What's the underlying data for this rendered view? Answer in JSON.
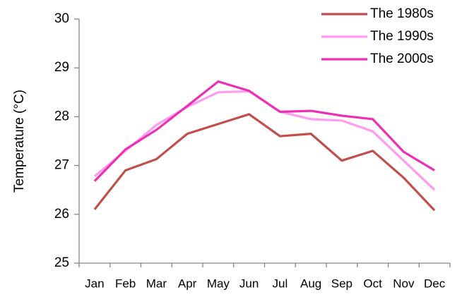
{
  "chart_data": {
    "type": "line",
    "y_label": "Temperature (°C)",
    "categories": [
      "Jan",
      "Feb",
      "Mar",
      "Apr",
      "May",
      "Jun",
      "Jul",
      "Aug",
      "Sep",
      "Oct",
      "Nov",
      "Dec"
    ],
    "series": [
      {
        "name": "The 1980s",
        "color": "#bf504c",
        "values": [
          26.1,
          26.9,
          27.13,
          27.65,
          27.85,
          28.05,
          27.6,
          27.65,
          27.1,
          27.3,
          26.75,
          26.08
        ]
      },
      {
        "name": "The 1990s",
        "color": "#ff9cf2",
        "values": [
          26.78,
          27.3,
          27.83,
          28.2,
          28.5,
          28.52,
          28.1,
          27.95,
          27.92,
          27.7,
          27.1,
          26.5
        ]
      },
      {
        "name": "The 2000s",
        "color": "#ec30b4",
        "values": [
          26.68,
          27.33,
          27.73,
          28.22,
          28.72,
          28.53,
          28.1,
          28.12,
          28.02,
          27.95,
          27.28,
          26.9
        ]
      }
    ],
    "ylim": [
      25,
      30
    ],
    "yticks": [
      25,
      26,
      27,
      28,
      29,
      30
    ],
    "legend": "top-right"
  }
}
